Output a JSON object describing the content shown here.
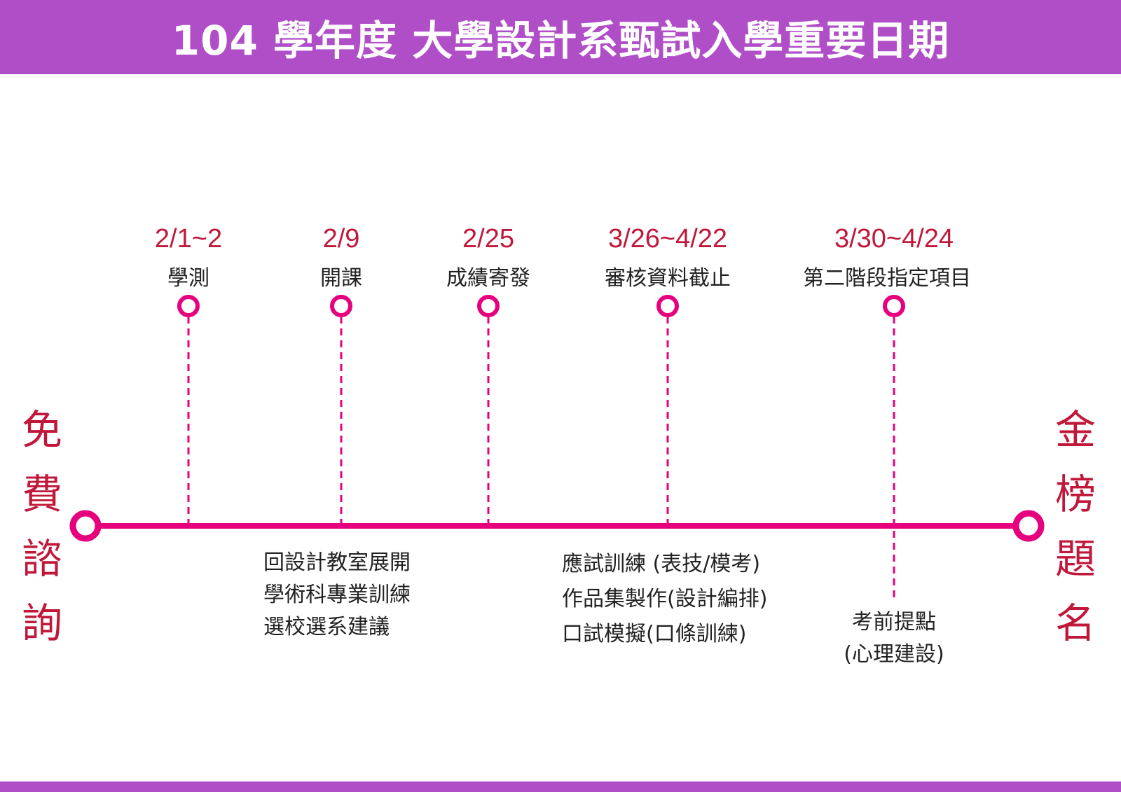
{
  "header": {
    "title": "104 學年度 大學設計系甄試入學重要日期"
  },
  "side_left": [
    "免",
    "費",
    "諮",
    "詢"
  ],
  "side_right": [
    "金",
    "榜",
    "題",
    "名"
  ],
  "milestones": [
    {
      "date": "2/1~2",
      "label": "學測"
    },
    {
      "date": "2/9",
      "label": "開課"
    },
    {
      "date": "2/25",
      "label": "成績寄發"
    },
    {
      "date": "3/26~4/22",
      "label": "審核資料截止"
    },
    {
      "date": "3/30~4/24",
      "label": "第二階段指定項目"
    }
  ],
  "notes": {
    "after_class": [
      "回設計教室展開",
      "學術科專業訓練",
      "選校選系建議"
    ],
    "training": [
      "應試訓練 (表技/模考)",
      "作品集製作(設計編排)",
      "口試模擬(口條訓練)"
    ],
    "final": [
      "考前提點",
      "(心理建設)"
    ]
  },
  "colors": {
    "header": "#b04ec8",
    "timeline": "#e6007e",
    "date_text": "#c0183a"
  }
}
